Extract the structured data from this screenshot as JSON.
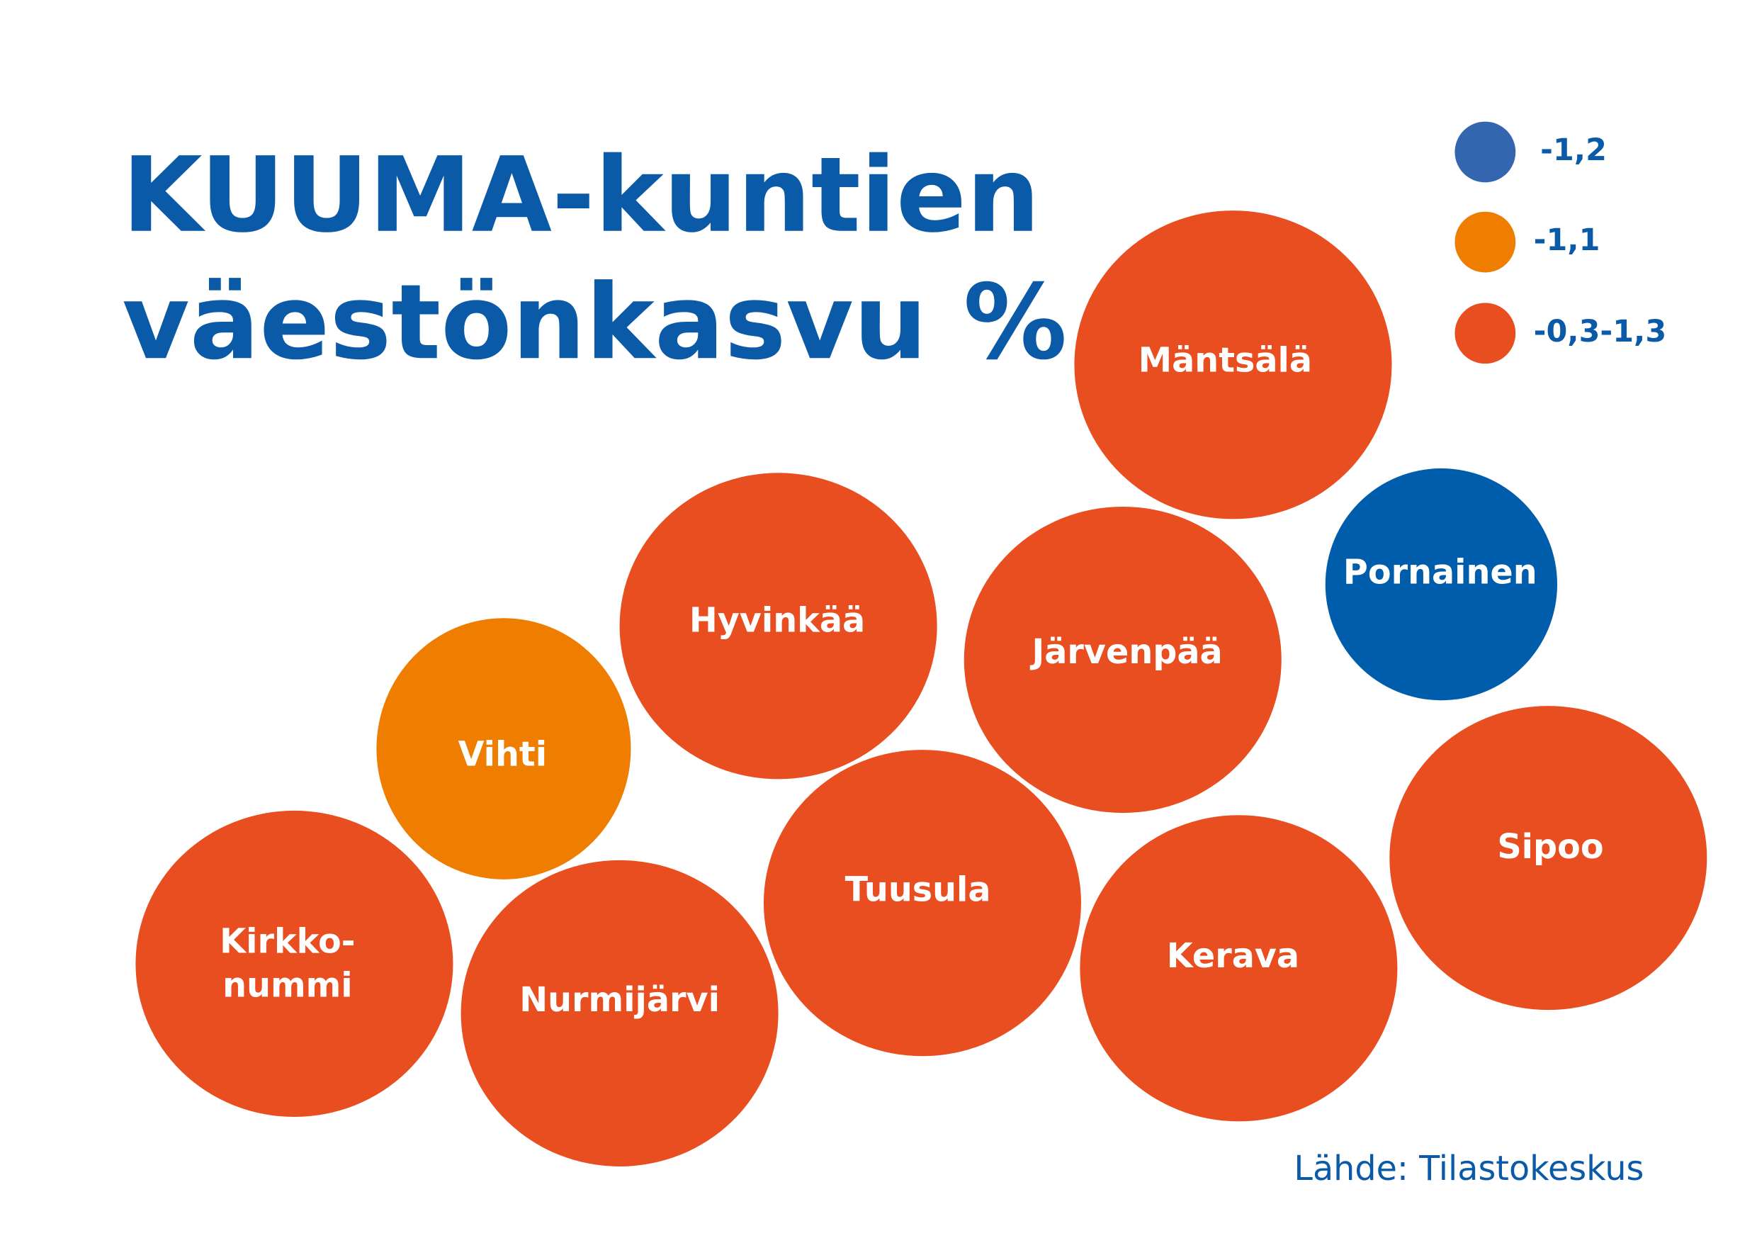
{
  "title": {
    "lines": [
      "KUUMA-kuntien",
      "väestönkasvu %"
    ]
  },
  "legend": [
    {
      "label": "-1,2",
      "color": "#3466b0"
    },
    {
      "label": "-1,1",
      "color": "#ef7d00"
    },
    {
      "label": "-0,3-1,3",
      "color": "#e84e1f"
    }
  ],
  "bubbles": [
    {
      "lines": [
        "Mäntsälä"
      ],
      "color": "#e84e1f"
    },
    {
      "lines": [
        "Pornainen"
      ],
      "color": "#005dab"
    },
    {
      "lines": [
        "Hyvinkää"
      ],
      "color": "#e84e1f"
    },
    {
      "lines": [
        "Järvenpää"
      ],
      "color": "#e84e1f"
    },
    {
      "lines": [
        "Vihti"
      ],
      "color": "#ef7d00"
    },
    {
      "lines": [
        "Sipoo"
      ],
      "color": "#e84e1f"
    },
    {
      "lines": [
        "Tuusula"
      ],
      "color": "#e84e1f"
    },
    {
      "lines": [
        "Kerava"
      ],
      "color": "#e84e1f"
    },
    {
      "lines": [
        "Kirkko-",
        "nummi"
      ],
      "color": "#e84e1f"
    },
    {
      "lines": [
        "Nurmijärvi"
      ],
      "color": "#e84e1f"
    }
  ],
  "source": "Lähde: Tilastokeskus"
}
